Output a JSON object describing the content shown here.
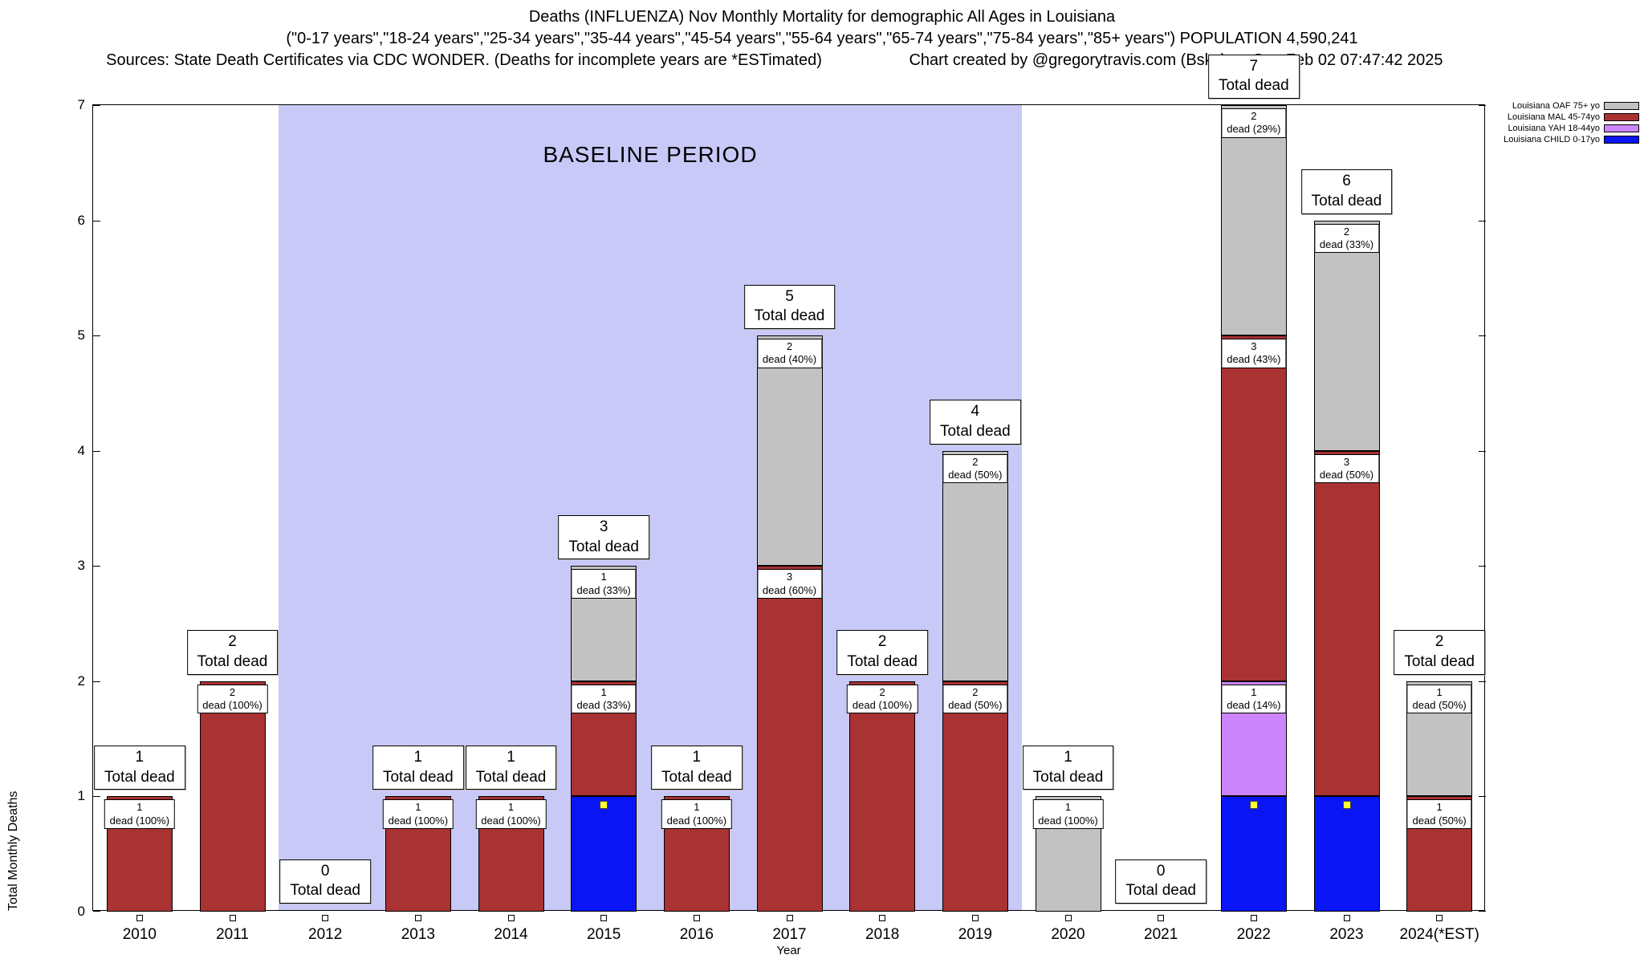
{
  "header": {
    "title_line1": "Deaths (INFLUENZA) Nov Monthly Mortality for demographic All Ages in Louisiana",
    "title_line2": "(\"0-17 years\",\"18-24 years\",\"25-34 years\",\"35-44 years\",\"45-54 years\",\"55-64 years\",\"65-74 years\",\"75-84 years\",\"85+ years\") POPULATION 4,590,241",
    "sources": "Sources: State Death Certificates via CDC WONDER. (Deaths for incomplete years are *ESTimated)",
    "credit": "Chart created by @gregorytravis.com (Bsky) on Sun Feb 02 07:47:42 2025"
  },
  "chart_data": {
    "type": "bar",
    "stacked": true,
    "xlabel": "Year",
    "ylabel": "Total Monthly Deaths",
    "ylim": [
      0,
      7
    ],
    "yticks": [
      0,
      1,
      2,
      3,
      4,
      5,
      6,
      7
    ],
    "grid": false,
    "legend_position": "top-right-outside",
    "total_label_suffix": "Total dead",
    "baseline": {
      "label": "BASELINE PERIOD",
      "start_index": 2,
      "end_index": 9,
      "color": "#c9c9f8"
    },
    "series_colors": {
      "OAF": "#c2c2c2",
      "MAL": "#a93232",
      "YAH": "#cc85fc",
      "CHILD": "#0a15f5"
    },
    "legend": [
      {
        "label": "Louisiana OAF 75+ yo",
        "series": "OAF"
      },
      {
        "label": "Louisiana MAL 45-74yo",
        "series": "MAL"
      },
      {
        "label": "Louisiana YAH 18-44yo",
        "series": "YAH"
      },
      {
        "label": "Louisiana CHILD 0-17yo",
        "series": "CHILD"
      }
    ],
    "categories": [
      "2010",
      "2011",
      "2012",
      "2013",
      "2014",
      "2015",
      "2016",
      "2017",
      "2018",
      "2019",
      "2020",
      "2021",
      "2022",
      "2023",
      "2024(*EST)"
    ],
    "bars": [
      {
        "year": "2010",
        "total": 1,
        "segments": [
          {
            "series": "MAL",
            "value": 1,
            "label": "1",
            "sublabel": "dead (100%)"
          }
        ]
      },
      {
        "year": "2011",
        "total": 2,
        "segments": [
          {
            "series": "MAL",
            "value": 2,
            "label": "2",
            "sublabel": "dead (100%)"
          }
        ]
      },
      {
        "year": "2012",
        "total": 0,
        "segments": []
      },
      {
        "year": "2013",
        "total": 1,
        "segments": [
          {
            "series": "MAL",
            "value": 1,
            "label": "1",
            "sublabel": "dead (100%)"
          }
        ]
      },
      {
        "year": "2014",
        "total": 1,
        "segments": [
          {
            "series": "MAL",
            "value": 1,
            "label": "1",
            "sublabel": "dead (100%)"
          }
        ]
      },
      {
        "year": "2015",
        "total": 3,
        "segments": [
          {
            "series": "CHILD",
            "value": 1,
            "marker": true
          },
          {
            "series": "MAL",
            "value": 1,
            "label": "1",
            "sublabel": "dead (33%)"
          },
          {
            "series": "OAF",
            "value": 1,
            "label": "1",
            "sublabel": "dead (33%)"
          }
        ]
      },
      {
        "year": "2016",
        "total": 1,
        "segments": [
          {
            "series": "MAL",
            "value": 1,
            "label": "1",
            "sublabel": "dead (100%)"
          }
        ]
      },
      {
        "year": "2017",
        "total": 5,
        "segments": [
          {
            "series": "MAL",
            "value": 3,
            "label": "3",
            "sublabel": "dead (60%)"
          },
          {
            "series": "OAF",
            "value": 2,
            "label": "2",
            "sublabel": "dead (40%)"
          }
        ]
      },
      {
        "year": "2018",
        "total": 2,
        "segments": [
          {
            "series": "MAL",
            "value": 2,
            "label": "2",
            "sublabel": "dead (100%)"
          }
        ]
      },
      {
        "year": "2019",
        "total": 4,
        "segments": [
          {
            "series": "MAL",
            "value": 2,
            "label": "2",
            "sublabel": "dead (50%)"
          },
          {
            "series": "OAF",
            "value": 2,
            "label": "2",
            "sublabel": "dead (50%)"
          }
        ]
      },
      {
        "year": "2020",
        "total": 1,
        "segments": [
          {
            "series": "OAF",
            "value": 1,
            "label": "1",
            "sublabel": "dead (100%)"
          }
        ]
      },
      {
        "year": "2021",
        "total": 0,
        "segments": []
      },
      {
        "year": "2022",
        "total": 7,
        "segments": [
          {
            "series": "CHILD",
            "value": 1,
            "marker": true
          },
          {
            "series": "YAH",
            "value": 1,
            "label": "1",
            "sublabel": "dead (14%)"
          },
          {
            "series": "MAL",
            "value": 3,
            "label": "3",
            "sublabel": "dead (43%)"
          },
          {
            "series": "OAF",
            "value": 2,
            "label": "2",
            "sublabel": "dead (29%)"
          }
        ]
      },
      {
        "year": "2023",
        "total": 6,
        "segments": [
          {
            "series": "CHILD",
            "value": 1,
            "marker": true
          },
          {
            "series": "MAL",
            "value": 3,
            "label": "3",
            "sublabel": "dead (50%)"
          },
          {
            "series": "OAF",
            "value": 2,
            "label": "2",
            "sublabel": "dead (33%)"
          }
        ]
      },
      {
        "year": "2024(*EST)",
        "total": 2,
        "segments": [
          {
            "series": "MAL",
            "value": 1,
            "label": "1",
            "sublabel": "dead (50%)"
          },
          {
            "series": "OAF",
            "value": 1,
            "label": "1",
            "sublabel": "dead (50%)"
          }
        ]
      }
    ]
  }
}
